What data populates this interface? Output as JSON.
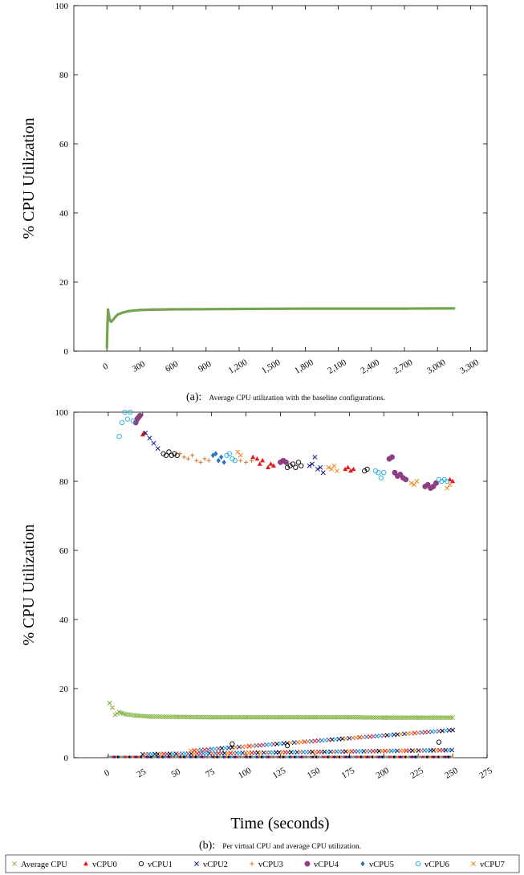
{
  "chart_data": [
    {
      "type": "scatter",
      "caption_label": "(a):",
      "caption_text": "Average CPU utilization with the baseline configurations.",
      "ylabel": "% CPU Utilization",
      "xlabel": "",
      "xlim": [
        -300,
        3450
      ],
      "ylim": [
        0,
        100
      ],
      "xticks": [
        0,
        300,
        600,
        900,
        1200,
        1500,
        1800,
        2100,
        2400,
        2700,
        3000,
        3300
      ],
      "xticklabels": [
        "0",
        "300",
        "600",
        "900",
        "1,200",
        "1,500",
        "1,800",
        "2,100",
        "2,400",
        "2,700",
        "3,000",
        "3,300"
      ],
      "yticks": [
        0,
        20,
        40,
        60,
        80,
        100
      ],
      "yticklabels": [
        "0",
        "20",
        "40",
        "60",
        "80",
        "100"
      ],
      "grid": false,
      "series": [
        {
          "name": "Average CPU",
          "color": "#76a34f",
          "x": [
            0,
            5,
            10,
            15,
            20,
            30,
            40,
            60,
            80,
            100,
            150,
            200,
            300,
            400,
            600,
            900,
            1200,
            1500,
            1800,
            2100,
            2400,
            2700,
            3000,
            3150
          ],
          "y": [
            1,
            7.5,
            12,
            11,
            10,
            8.8,
            8.5,
            9.2,
            10,
            10.6,
            11.2,
            11.6,
            11.9,
            12.0,
            12.1,
            12.15,
            12.2,
            12.25,
            12.3,
            12.3,
            12.3,
            12.3,
            12.35,
            12.35
          ]
        }
      ]
    },
    {
      "type": "scatter",
      "caption_label": "(b):",
      "caption_text": "Per virtual CPU and average CPU utilization.",
      "ylabel": "% CPU Utilization",
      "xlabel": "Time (seconds)",
      "xlim": [
        -25,
        275
      ],
      "ylim": [
        0,
        100
      ],
      "xticks": [
        0,
        25,
        50,
        75,
        100,
        125,
        150,
        175,
        200,
        225,
        250,
        275
      ],
      "xticklabels": [
        "0",
        "25",
        "50",
        "75",
        "100",
        "125",
        "150",
        "175",
        "200",
        "225",
        "250",
        "275"
      ],
      "yticks": [
        0,
        20,
        40,
        60,
        80,
        100
      ],
      "yticklabels": [
        "0",
        "20",
        "40",
        "60",
        "80",
        "100"
      ],
      "grid": false,
      "legend_position": "bottom",
      "series": [
        {
          "name": "Average CPU",
          "color": "#8cb74f",
          "marker": "x",
          "x": [
            1,
            3,
            5,
            8,
            12,
            20,
            30,
            50,
            75,
            100,
            125,
            150,
            175,
            200,
            225,
            250
          ],
          "y": [
            15.8,
            14.5,
            12.4,
            13.2,
            12.6,
            12.2,
            11.9,
            11.8,
            11.7,
            11.7,
            11.7,
            11.7,
            11.7,
            11.6,
            11.6,
            11.6
          ]
        },
        {
          "name": "vCPU0",
          "color": "#e41a1c",
          "marker": "triangle",
          "x": [
            25,
            26,
            105,
            108,
            110,
            112,
            116,
            118,
            120,
            172,
            174,
            176,
            178,
            248,
            250
          ],
          "y": [
            93.5,
            94,
            87,
            86.5,
            85,
            86,
            84,
            85,
            84.5,
            83.5,
            84,
            83,
            83.5,
            80.5,
            80
          ]
        },
        {
          "name": "vCPU1",
          "color": "#000000",
          "marker": "circle",
          "x": [
            40,
            42,
            44,
            46,
            48,
            50,
            130,
            132,
            134,
            136,
            138,
            140,
            186,
            188,
            90,
            130,
            240
          ],
          "y": [
            88,
            87.5,
            88.5,
            87.5,
            88,
            87.5,
            84,
            84.5,
            85,
            84,
            85.5,
            84.5,
            83,
            83.5,
            4,
            3.5,
            4.5
          ]
        },
        {
          "name": "vCPU2",
          "color": "#0a1c8a",
          "marker": "x",
          "x": [
            27,
            30,
            33,
            36,
            146,
            148,
            150,
            152,
            154,
            156
          ],
          "y": [
            94,
            92.5,
            91,
            89.5,
            84.5,
            85,
            87,
            83.5,
            84,
            82.5
          ]
        },
        {
          "name": "vCPU3",
          "color": "#d2762d",
          "marker": "plus",
          "x": [
            52,
            55,
            58,
            61,
            64,
            67,
            70,
            73,
            96,
            100,
            104
          ],
          "y": [
            88,
            87,
            86.5,
            87.5,
            86,
            85.5,
            86.5,
            86,
            86,
            85.5,
            86
          ]
        },
        {
          "name": "vCPU4",
          "color": "#8e3f82",
          "marker": "circle",
          "x": [
            20,
            21,
            22,
            23,
            125,
            127,
            129,
            204,
            206,
            208,
            210,
            212,
            214,
            216,
            230,
            232,
            234,
            236,
            238
          ],
          "y": [
            97,
            98,
            98.5,
            99,
            85.5,
            86,
            85.5,
            86.5,
            87,
            82.5,
            81.5,
            82,
            81,
            80.5,
            78.5,
            79,
            78,
            78.5,
            79.5
          ]
        },
        {
          "name": "vCPU5",
          "color": "#2e73b8",
          "marker": "diamond",
          "x": [
            76,
            78,
            80,
            82,
            84
          ],
          "y": [
            87.5,
            88,
            86,
            87,
            85.5
          ]
        },
        {
          "name": "vCPU6",
          "color": "#1ab0e0",
          "marker": "circle",
          "x": [
            8,
            10,
            12,
            14,
            16,
            18,
            86,
            88,
            90,
            92,
            194,
            196,
            198,
            200,
            240,
            242,
            244,
            246
          ],
          "y": [
            93,
            97,
            100,
            98,
            100,
            97.5,
            87.5,
            88,
            86.5,
            86,
            83,
            82.5,
            81,
            82.5,
            80.5,
            80,
            80.5,
            80
          ]
        },
        {
          "name": "vCPU7",
          "color": "#f5861f",
          "marker": "x",
          "x": [
            94,
            96,
            160,
            162,
            164,
            166,
            220,
            222,
            224,
            246,
            248
          ],
          "y": [
            88.5,
            87.5,
            84,
            83.5,
            84.5,
            83,
            79.5,
            79,
            80,
            78,
            79
          ]
        }
      ]
    }
  ]
}
